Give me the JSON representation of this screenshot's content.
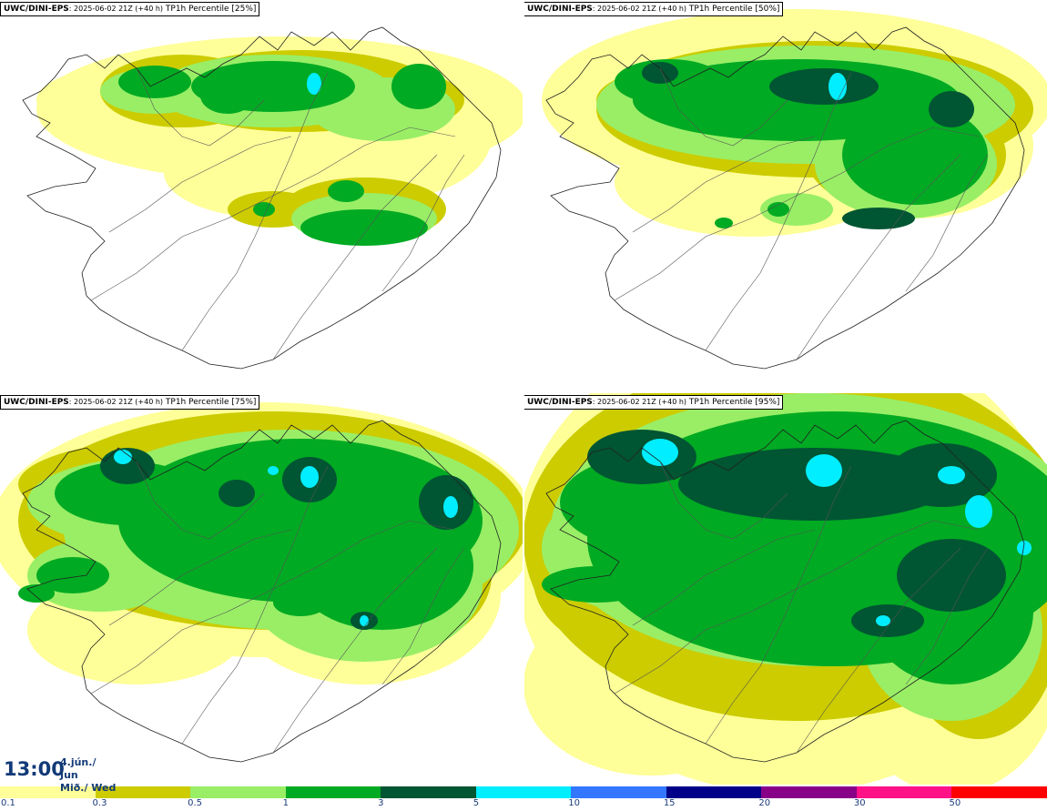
{
  "panels": [
    {
      "model": "UWC/DINI-EPS",
      "run": ": 2025-06-02 21Z (+40 h)",
      "variable": "TP1h Percentile [25%]"
    },
    {
      "model": "UWC/DINI-EPS",
      "run": ": 2025-06-02 21Z (+40 h)",
      "variable": "TP1h Percentile [50%]"
    },
    {
      "model": "UWC/DINI-EPS",
      "run": ": 2025-06-02 21Z (+40 h)",
      "variable": "TP1h Percentile [75%]"
    },
    {
      "model": "UWC/DINI-EPS",
      "run": ": 2025-06-02 21Z (+40 h)",
      "variable": "TP1h Percentile [95%]"
    }
  ],
  "valid_time": {
    "time": "13:00",
    "date_line1": "4.jún./ Jun",
    "date_line2": "Mið./ Wed"
  },
  "legend": {
    "colors": [
      "#ffff99",
      "#cccc00",
      "#99ee66",
      "#00aa22",
      "#005533",
      "#00eeff",
      "#3377ff",
      "#000088",
      "#880088",
      "#ff1188",
      "#ff0000"
    ],
    "ticks": [
      "0.1",
      "0.3",
      "0.5",
      "1",
      "3",
      "5",
      "10",
      "15",
      "20",
      "30",
      "50"
    ]
  },
  "map_colors": {
    "land": "#ffffff",
    "coast": "#222222"
  }
}
